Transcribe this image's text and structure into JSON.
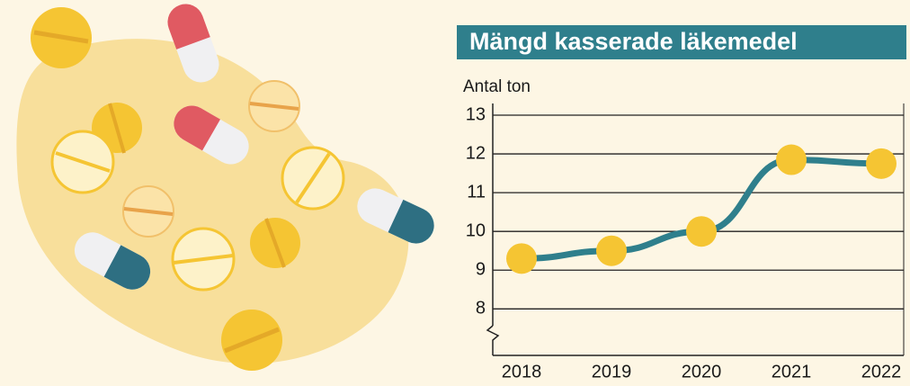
{
  "chart_data": {
    "type": "line",
    "title": "Mängd kasserade läkemedel",
    "y_label": "Antal ton",
    "categories": [
      "2018",
      "2019",
      "2020",
      "2021",
      "2022"
    ],
    "series": [
      {
        "color": "#2f7f8c",
        "marker_color": "#f5c533",
        "values": [
          9.3,
          9.5,
          10.0,
          11.85,
          11.75
        ]
      }
    ],
    "ylim": [
      6.8,
      13
    ],
    "yticks": [
      8,
      9,
      10,
      11,
      12,
      13
    ],
    "grid": true
  }
}
